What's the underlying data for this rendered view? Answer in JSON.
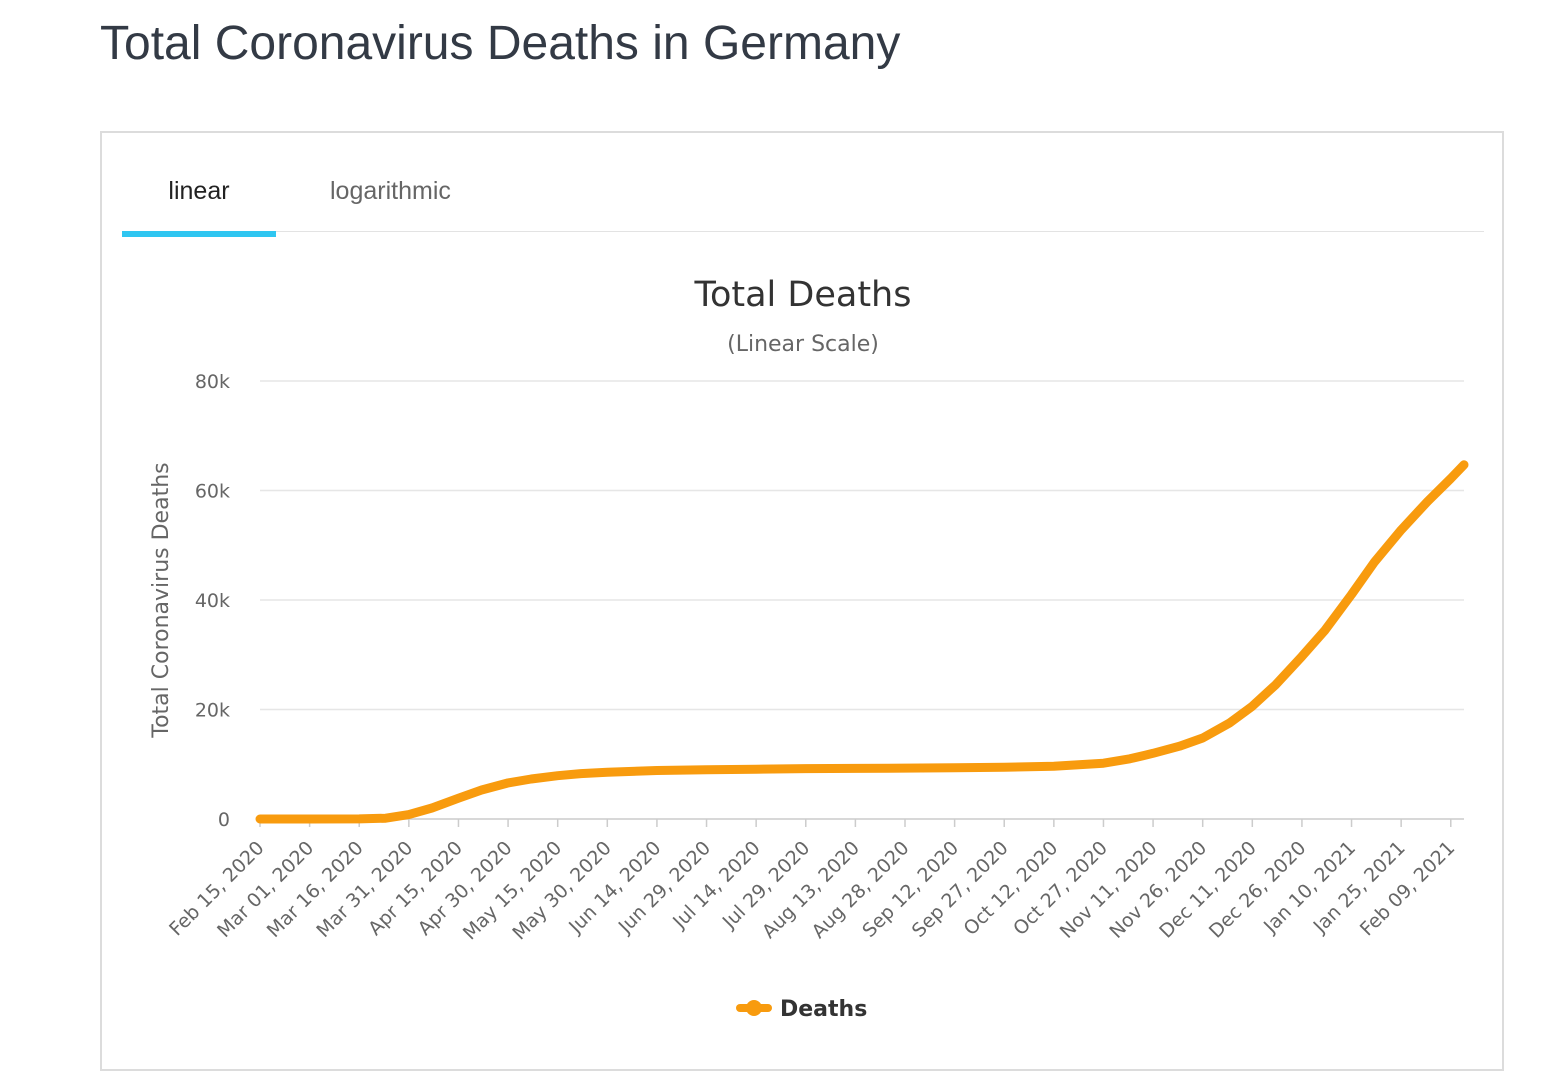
{
  "page": {
    "title": "Total Coronavirus Deaths in Germany"
  },
  "tabs": [
    {
      "label": "linear",
      "active": true
    },
    {
      "label": "logarithmic",
      "active": false
    }
  ],
  "colors": {
    "accent": "#2fc6f1",
    "series": "#f89b0e",
    "grid": "#e6e6e6",
    "text": "#666666"
  },
  "chart_data": {
    "type": "line",
    "title": "Total Deaths",
    "subtitle": "(Linear Scale)",
    "xlabel": "",
    "ylabel": "Total Coronavirus Deaths",
    "ylim": [
      0,
      80000
    ],
    "yticks": [
      {
        "value": 0,
        "label": "0"
      },
      {
        "value": 20000,
        "label": "20k"
      },
      {
        "value": 40000,
        "label": "40k"
      },
      {
        "value": 60000,
        "label": "60k"
      },
      {
        "value": 80000,
        "label": "80k"
      }
    ],
    "xlim": [
      "2020-02-15",
      "2021-02-13"
    ],
    "xticks": [
      "Feb 15, 2020",
      "Mar 01, 2020",
      "Mar 16, 2020",
      "Mar 31, 2020",
      "Apr 15, 2020",
      "Apr 30, 2020",
      "May 15, 2020",
      "May 30, 2020",
      "Jun 14, 2020",
      "Jun 29, 2020",
      "Jul 14, 2020",
      "Jul 29, 2020",
      "Aug 13, 2020",
      "Aug 28, 2020",
      "Sep 12, 2020",
      "Sep 27, 2020",
      "Oct 12, 2020",
      "Oct 27, 2020",
      "Nov 11, 2020",
      "Nov 26, 2020",
      "Dec 11, 2020",
      "Dec 26, 2020",
      "Jan 10, 2021",
      "Jan 25, 2021",
      "Feb 09, 2021"
    ],
    "grid": true,
    "legend": "bottom-center",
    "series": [
      {
        "name": "Deaths",
        "color": "#f89b0e",
        "points": [
          {
            "x": "2020-02-15",
            "y": 0
          },
          {
            "x": "2020-03-01",
            "y": 0
          },
          {
            "x": "2020-03-16",
            "y": 20
          },
          {
            "x": "2020-03-24",
            "y": 150
          },
          {
            "x": "2020-03-31",
            "y": 800
          },
          {
            "x": "2020-04-07",
            "y": 2000
          },
          {
            "x": "2020-04-15",
            "y": 3800
          },
          {
            "x": "2020-04-22",
            "y": 5300
          },
          {
            "x": "2020-04-30",
            "y": 6600
          },
          {
            "x": "2020-05-07",
            "y": 7300
          },
          {
            "x": "2020-05-15",
            "y": 7900
          },
          {
            "x": "2020-05-22",
            "y": 8300
          },
          {
            "x": "2020-05-30",
            "y": 8550
          },
          {
            "x": "2020-06-14",
            "y": 8850
          },
          {
            "x": "2020-06-29",
            "y": 9000
          },
          {
            "x": "2020-07-14",
            "y": 9100
          },
          {
            "x": "2020-07-29",
            "y": 9200
          },
          {
            "x": "2020-08-13",
            "y": 9250
          },
          {
            "x": "2020-08-28",
            "y": 9300
          },
          {
            "x": "2020-09-12",
            "y": 9350
          },
          {
            "x": "2020-09-27",
            "y": 9450
          },
          {
            "x": "2020-10-12",
            "y": 9650
          },
          {
            "x": "2020-10-27",
            "y": 10200
          },
          {
            "x": "2020-11-04",
            "y": 11000
          },
          {
            "x": "2020-11-11",
            "y": 12000
          },
          {
            "x": "2020-11-19",
            "y": 13300
          },
          {
            "x": "2020-11-26",
            "y": 14800
          },
          {
            "x": "2020-12-04",
            "y": 17500
          },
          {
            "x": "2020-12-11",
            "y": 20600
          },
          {
            "x": "2020-12-18",
            "y": 24500
          },
          {
            "x": "2020-12-26",
            "y": 29700
          },
          {
            "x": "2021-01-02",
            "y": 34500
          },
          {
            "x": "2021-01-10",
            "y": 41000
          },
          {
            "x": "2021-01-17",
            "y": 47000
          },
          {
            "x": "2021-01-25",
            "y": 52800
          },
          {
            "x": "2021-02-02",
            "y": 58000
          },
          {
            "x": "2021-02-09",
            "y": 62200
          },
          {
            "x": "2021-02-13",
            "y": 64700
          }
        ]
      }
    ]
  }
}
